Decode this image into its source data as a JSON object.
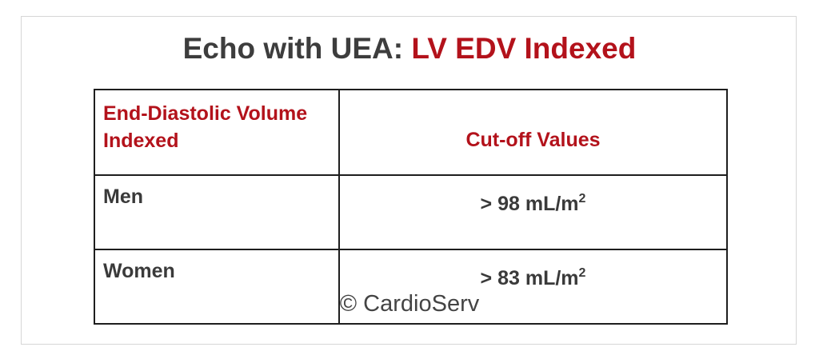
{
  "header": {
    "title_prefix": "Echo with UEA:",
    "title_highlight": "LV EDV Indexed"
  },
  "table": {
    "columns": [
      "End-Diastolic Volume Indexed",
      "Cut-off Values"
    ],
    "rows": [
      [
        "Men",
        {
          "text": "> 98 mL/m",
          "sup": "2"
        }
      ],
      [
        "Women",
        {
          "text": "> 83 mL/m",
          "sup": "2"
        }
      ]
    ]
  },
  "footer": {
    "text": "© CardioServ"
  }
}
